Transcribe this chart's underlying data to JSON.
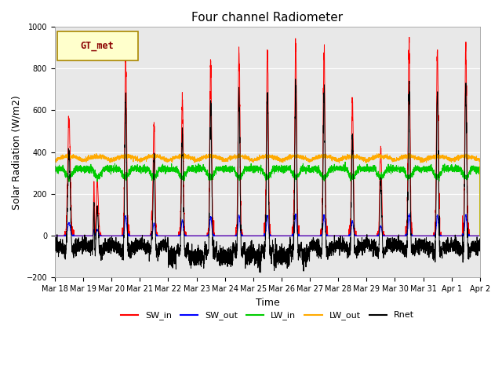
{
  "title": "Four channel Radiometer",
  "xlabel": "Time",
  "ylabel": "Solar Radiation (W/m2)",
  "ylim": [
    -200,
    1000
  ],
  "xlim": [
    0,
    15
  ],
  "bg_color": "#e8e8e8",
  "fig_color": "#ffffff",
  "legend_label": "GT_met",
  "series_colors": {
    "SW_in": "#ff0000",
    "SW_out": "#0000ff",
    "LW_in": "#00cc00",
    "LW_out": "#ffaa00",
    "Rnet": "#000000"
  },
  "xtick_labels": [
    "Mar 18",
    "Mar 19",
    "Mar 20",
    "Mar 21",
    "Mar 22",
    "Mar 23",
    "Mar 24",
    "Mar 25",
    "Mar 26",
    "Mar 27",
    "Mar 28",
    "Mar 29",
    "Mar 30",
    "Mar 31",
    "Apr 1",
    "Apr 2"
  ],
  "n_days": 15,
  "points_per_day": 288,
  "yticks": [
    -200,
    0,
    200,
    400,
    600,
    800,
    1000
  ]
}
